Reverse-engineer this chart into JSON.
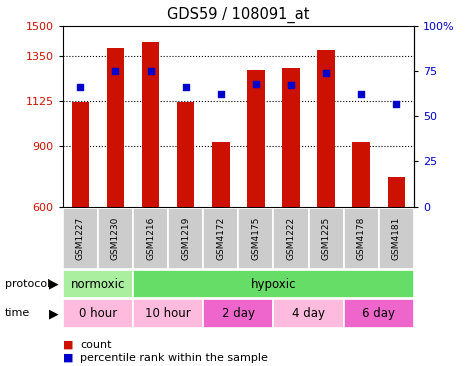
{
  "title": "GDS59 / 108091_at",
  "samples": [
    "GSM1227",
    "GSM1230",
    "GSM1216",
    "GSM1219",
    "GSM4172",
    "GSM4175",
    "GSM1222",
    "GSM1225",
    "GSM4178",
    "GSM4181"
  ],
  "counts": [
    1120,
    1390,
    1420,
    1120,
    920,
    1280,
    1290,
    1380,
    920,
    750
  ],
  "percentile_ranks": [
    66,
    75,
    75,
    66,
    62,
    68,
    67,
    74,
    62,
    57
  ],
  "ymin": 600,
  "ymax": 1500,
  "y_ticks": [
    600,
    900,
    1125,
    1350,
    1500
  ],
  "y_tick_labels": [
    "600",
    "900",
    "1125",
    "1350",
    "1500"
  ],
  "right_yticks": [
    0,
    25,
    50,
    75,
    100
  ],
  "right_yticklabels": [
    "0",
    "25",
    "50",
    "75",
    "100%"
  ],
  "bar_color": "#cc1100",
  "dot_color": "#0000cc",
  "protocol_groups": [
    {
      "label": "normoxic",
      "start": 0,
      "end": 2,
      "color": "#aaeea0"
    },
    {
      "label": "hypoxic",
      "start": 2,
      "end": 10,
      "color": "#66dd66"
    }
  ],
  "time_groups": [
    {
      "label": "0 hour",
      "start": 0,
      "end": 2,
      "color": "#ffbbdd"
    },
    {
      "label": "10 hour",
      "start": 2,
      "end": 4,
      "color": "#ffbbdd"
    },
    {
      "label": "2 day",
      "start": 4,
      "end": 6,
      "color": "#ee66cc"
    },
    {
      "label": "4 day",
      "start": 6,
      "end": 8,
      "color": "#ffbbdd"
    },
    {
      "label": "6 day",
      "start": 8,
      "end": 10,
      "color": "#ee66cc"
    }
  ],
  "legend_count_color": "#cc1100",
  "legend_dot_color": "#0000cc",
  "axis_label_color_left": "#cc1100",
  "axis_label_color_right": "#0000cc",
  "bg_color": "#ffffff",
  "sample_box_color": "#cccccc",
  "grid_dotted_color": "#333333",
  "gridlines": [
    900,
    1125,
    1350
  ]
}
